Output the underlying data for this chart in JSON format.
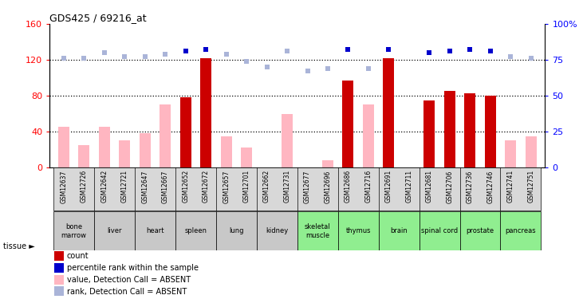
{
  "title": "GDS425 / 69216_at",
  "samples": [
    "GSM12637",
    "GSM12726",
    "GSM12642",
    "GSM12721",
    "GSM12647",
    "GSM12667",
    "GSM12652",
    "GSM12672",
    "GSM12657",
    "GSM12701",
    "GSM12662",
    "GSM12731",
    "GSM12677",
    "GSM12696",
    "GSM12686",
    "GSM12716",
    "GSM12691",
    "GSM12711",
    "GSM12681",
    "GSM12706",
    "GSM12736",
    "GSM12746",
    "GSM12741",
    "GSM12751"
  ],
  "count_values": [
    0,
    0,
    0,
    0,
    0,
    0,
    78,
    122,
    0,
    0,
    0,
    0,
    0,
    0,
    97,
    0,
    122,
    0,
    75,
    85,
    83,
    80,
    0,
    0
  ],
  "absent_values": [
    45,
    25,
    45,
    30,
    38,
    70,
    0,
    0,
    35,
    22,
    0,
    60,
    0,
    8,
    0,
    70,
    0,
    0,
    0,
    0,
    0,
    0,
    30,
    35
  ],
  "percentile_present": [
    null,
    null,
    null,
    null,
    null,
    null,
    130,
    132,
    null,
    null,
    null,
    null,
    null,
    null,
    132,
    null,
    132,
    null,
    128,
    130,
    132,
    130,
    null,
    null
  ],
  "percentile_absent": [
    122,
    122,
    128,
    124,
    124,
    126,
    null,
    null,
    126,
    118,
    112,
    130,
    108,
    110,
    null,
    110,
    null,
    null,
    null,
    null,
    null,
    null,
    124,
    122
  ],
  "tissues": [
    {
      "name": "bone\nmarrow",
      "start": 0,
      "end": 2,
      "color": "#c8c8c8"
    },
    {
      "name": "liver",
      "start": 2,
      "end": 4,
      "color": "#c8c8c8"
    },
    {
      "name": "heart",
      "start": 4,
      "end": 6,
      "color": "#c8c8c8"
    },
    {
      "name": "spleen",
      "start": 6,
      "end": 8,
      "color": "#c8c8c8"
    },
    {
      "name": "lung",
      "start": 8,
      "end": 10,
      "color": "#c8c8c8"
    },
    {
      "name": "kidney",
      "start": 10,
      "end": 12,
      "color": "#c8c8c8"
    },
    {
      "name": "skeletal\nmuscle",
      "start": 12,
      "end": 14,
      "color": "#90ee90"
    },
    {
      "name": "thymus",
      "start": 14,
      "end": 16,
      "color": "#90ee90"
    },
    {
      "name": "brain",
      "start": 16,
      "end": 18,
      "color": "#90ee90"
    },
    {
      "name": "spinal cord",
      "start": 18,
      "end": 20,
      "color": "#90ee90"
    },
    {
      "name": "prostate",
      "start": 20,
      "end": 22,
      "color": "#90ee90"
    },
    {
      "name": "pancreas",
      "start": 22,
      "end": 24,
      "color": "#90ee90"
    }
  ],
  "ylim_left": [
    0,
    160
  ],
  "ylim_right": [
    0,
    100
  ],
  "yticks_left": [
    0,
    40,
    80,
    120,
    160
  ],
  "yticks_right": [
    0,
    25,
    50,
    75,
    100
  ],
  "count_color": "#cc0000",
  "absent_value_color": "#ffb6c1",
  "absent_rank_color": "#aab4d8",
  "present_rank_color": "#0000cc",
  "bar_width": 0.55,
  "marker_size_present": 4.5,
  "marker_size_absent": 4.0
}
